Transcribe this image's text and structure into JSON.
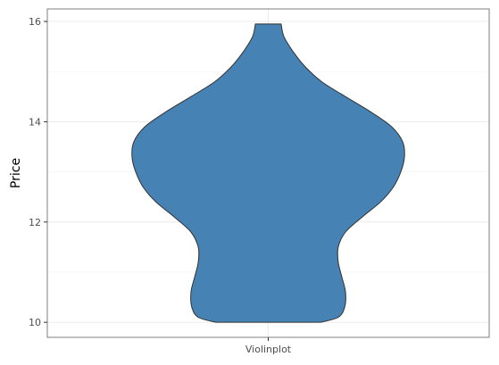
{
  "chart_data": {
    "type": "violin",
    "categories": [
      "Violinplot"
    ],
    "ylabel": "Price",
    "xlabel": "",
    "ylim": [
      9.7,
      16.25
    ],
    "y_ticks": [
      10,
      12,
      14,
      16
    ],
    "grid": true,
    "fill_color": "#4682b4",
    "stroke_color": "#333333",
    "violin": {
      "y_min": 10.0,
      "y_max": 15.95,
      "half_width_profile": [
        {
          "y": 10.0,
          "w": 0.57
        },
        {
          "y": 10.1,
          "w": 0.76
        },
        {
          "y": 10.3,
          "w": 0.83
        },
        {
          "y": 10.6,
          "w": 0.84
        },
        {
          "y": 10.9,
          "w": 0.8
        },
        {
          "y": 11.2,
          "w": 0.76
        },
        {
          "y": 11.5,
          "w": 0.76
        },
        {
          "y": 11.8,
          "w": 0.84
        },
        {
          "y": 12.1,
          "w": 1.02
        },
        {
          "y": 12.4,
          "w": 1.22
        },
        {
          "y": 12.7,
          "w": 1.36
        },
        {
          "y": 13.0,
          "w": 1.44
        },
        {
          "y": 13.3,
          "w": 1.48
        },
        {
          "y": 13.6,
          "w": 1.46
        },
        {
          "y": 13.9,
          "w": 1.34
        },
        {
          "y": 14.2,
          "w": 1.11
        },
        {
          "y": 14.5,
          "w": 0.84
        },
        {
          "y": 14.8,
          "w": 0.58
        },
        {
          "y": 15.1,
          "w": 0.4
        },
        {
          "y": 15.4,
          "w": 0.27
        },
        {
          "y": 15.7,
          "w": 0.17
        },
        {
          "y": 15.95,
          "w": 0.14
        }
      ]
    }
  }
}
